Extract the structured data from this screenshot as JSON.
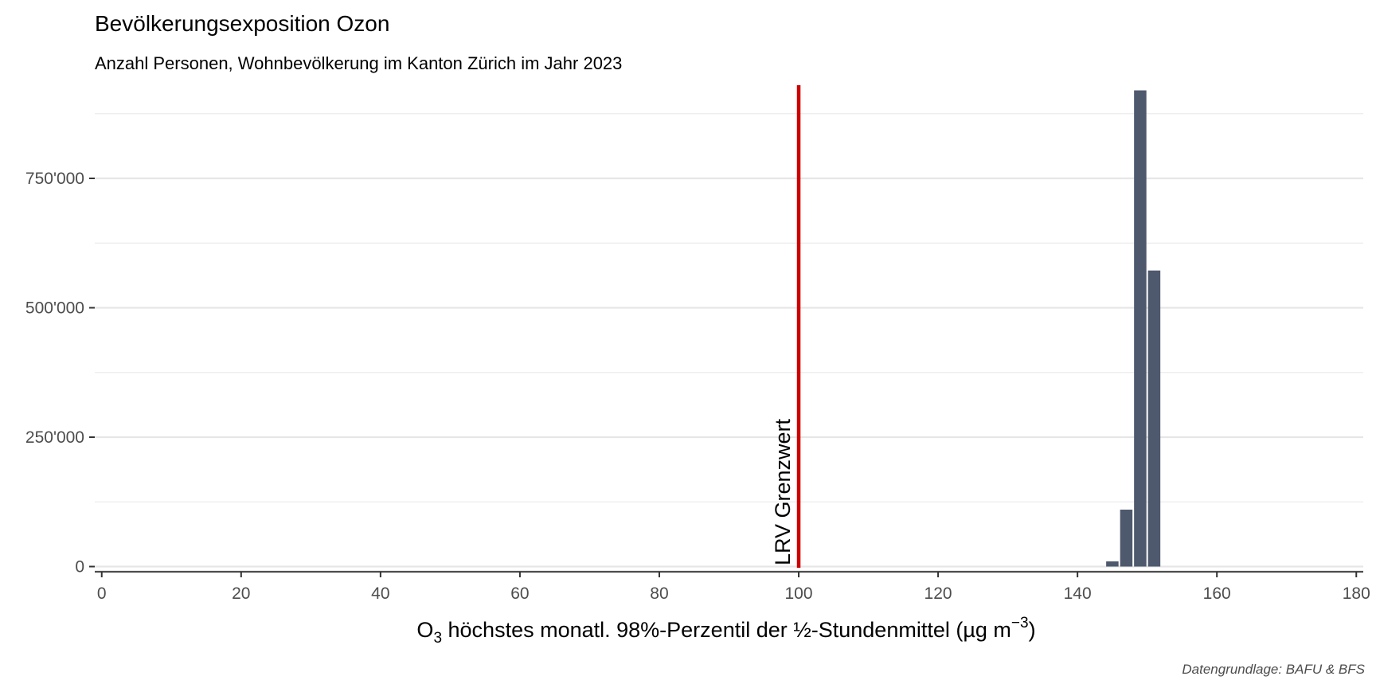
{
  "chart_data": {
    "type": "bar",
    "title": "Bevölkerungsexposition Ozon",
    "subtitle": "Anzahl Personen, Wohnbevölkerung im Kanton Zürich im Jahr 2023",
    "xlabel": {
      "prefix": "O",
      "sub": "3",
      "middle": " höchstes monatl. 98%-Perzentil der ½-Stundenmittel (µg m",
      "sup": "−3",
      "suffix": ")"
    },
    "ylabel": "",
    "caption": "Datengrundlage: BAFU & BFS",
    "x": [
      145,
      147,
      149,
      151
    ],
    "values": [
      10000,
      110000,
      920000,
      572000
    ],
    "bar_width": 2,
    "xlim": [
      -1,
      181
    ],
    "ylim": [
      -10000,
      930000
    ],
    "x_ticks": [
      0,
      20,
      40,
      60,
      80,
      100,
      120,
      140,
      160,
      180
    ],
    "x_tick_labels": [
      "0",
      "20",
      "40",
      "60",
      "80",
      "100",
      "120",
      "140",
      "160",
      "180"
    ],
    "y_ticks": [
      0,
      250000,
      500000,
      750000
    ],
    "y_tick_labels": [
      "0",
      "250'000",
      "500'000",
      "750'000"
    ],
    "y_minor_ticks": [
      125000,
      375000,
      625000,
      875000
    ],
    "grid": true,
    "reference_line": {
      "x": 100,
      "label": "LRV Grenzwert",
      "color": "#cc0000"
    },
    "bar_color": "#4e596e"
  }
}
